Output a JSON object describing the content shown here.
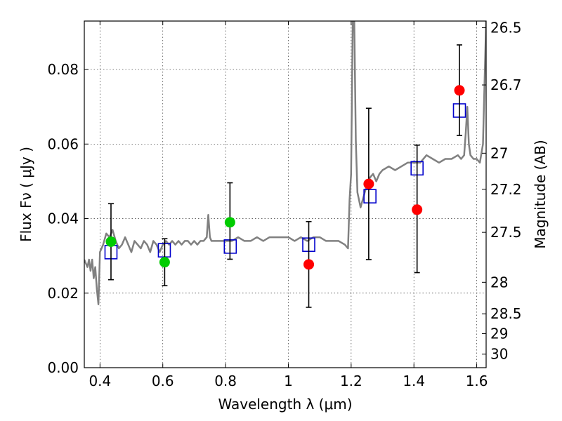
{
  "chart_data": {
    "type": "scatter",
    "xlabel": "Wavelength  λ (μm)",
    "ylabel": "Flux  Fν  ( μJy )",
    "ylabel_right": "Magnitude (AB)",
    "xlim": [
      0.35,
      1.63
    ],
    "ylim": [
      0.0,
      0.093
    ],
    "grid": true,
    "x_ticks": [
      0.4,
      0.6,
      0.8,
      1.0,
      1.2,
      1.4,
      1.6
    ],
    "x_tick_labels": [
      "0.4",
      "0.6",
      "0.8",
      "1",
      "1.2",
      "1.4",
      "1.6"
    ],
    "y_ticks": [
      0.0,
      0.02,
      0.04,
      0.06,
      0.08
    ],
    "y_tick_labels": [
      "0.00",
      "0.02",
      "0.04",
      "0.06",
      "0.08"
    ],
    "mag_ticks": [
      26.5,
      26.7,
      27,
      27.2,
      27.5,
      28,
      28.5,
      29,
      30
    ],
    "mag_tick_labels": [
      "26.5",
      "26.7",
      "27",
      "27.2",
      "27.5",
      "28",
      "28.5",
      "29",
      "30"
    ],
    "series": [
      {
        "kind": "model_spectrum",
        "color": "#808080",
        "x": [
          0.35,
          0.355,
          0.36,
          0.365,
          0.37,
          0.375,
          0.38,
          0.385,
          0.39,
          0.395,
          0.4,
          0.41,
          0.42,
          0.43,
          0.44,
          0.45,
          0.46,
          0.47,
          0.48,
          0.49,
          0.5,
          0.51,
          0.52,
          0.53,
          0.54,
          0.55,
          0.56,
          0.57,
          0.58,
          0.59,
          0.6,
          0.61,
          0.62,
          0.63,
          0.64,
          0.65,
          0.66,
          0.67,
          0.68,
          0.69,
          0.7,
          0.71,
          0.72,
          0.73,
          0.74,
          0.745,
          0.75,
          0.755,
          0.76,
          0.77,
          0.78,
          0.79,
          0.8,
          0.82,
          0.84,
          0.86,
          0.88,
          0.9,
          0.92,
          0.94,
          0.96,
          0.98,
          1.0,
          1.02,
          1.04,
          1.06,
          1.08,
          1.1,
          1.12,
          1.14,
          1.16,
          1.18,
          1.19,
          1.195,
          1.2,
          1.205,
          1.21,
          1.215,
          1.22,
          1.23,
          1.24,
          1.25,
          1.26,
          1.27,
          1.28,
          1.29,
          1.3,
          1.32,
          1.34,
          1.36,
          1.38,
          1.4,
          1.42,
          1.44,
          1.46,
          1.48,
          1.5,
          1.52,
          1.54,
          1.55,
          1.56,
          1.565,
          1.57,
          1.575,
          1.58,
          1.59,
          1.6,
          1.61,
          1.62,
          1.63
        ],
        "y": [
          0.029,
          0.028,
          0.027,
          0.029,
          0.026,
          0.029,
          0.024,
          0.027,
          0.021,
          0.017,
          0.031,
          0.033,
          0.036,
          0.035,
          0.037,
          0.034,
          0.032,
          0.033,
          0.035,
          0.033,
          0.031,
          0.034,
          0.033,
          0.032,
          0.034,
          0.033,
          0.031,
          0.034,
          0.033,
          0.031,
          0.033,
          0.034,
          0.033,
          0.034,
          0.033,
          0.034,
          0.033,
          0.034,
          0.034,
          0.033,
          0.034,
          0.033,
          0.034,
          0.034,
          0.035,
          0.041,
          0.035,
          0.034,
          0.034,
          0.034,
          0.034,
          0.034,
          0.034,
          0.034,
          0.035,
          0.034,
          0.034,
          0.035,
          0.034,
          0.035,
          0.035,
          0.035,
          0.035,
          0.034,
          0.035,
          0.034,
          0.035,
          0.035,
          0.034,
          0.034,
          0.034,
          0.033,
          0.032,
          0.045,
          0.052,
          0.093,
          0.093,
          0.061,
          0.047,
          0.043,
          0.046,
          0.049,
          0.051,
          0.052,
          0.05,
          0.052,
          0.053,
          0.054,
          0.053,
          0.054,
          0.055,
          0.055,
          0.055,
          0.057,
          0.056,
          0.055,
          0.056,
          0.056,
          0.057,
          0.056,
          0.057,
          0.063,
          0.07,
          0.06,
          0.057,
          0.056,
          0.056,
          0.055,
          0.06,
          0.093
        ]
      },
      {
        "kind": "model_photometry",
        "marker": "open-square",
        "color": "#0000cc",
        "x": [
          0.435,
          0.605,
          0.815,
          1.065,
          1.26,
          1.41,
          1.545
        ],
        "y": [
          0.031,
          0.0315,
          0.0325,
          0.033,
          0.046,
          0.0535,
          0.069
        ]
      },
      {
        "kind": "observed_hst",
        "marker": "circle",
        "color": "#00cc00",
        "x": [
          0.435,
          0.606,
          0.814
        ],
        "y": [
          0.0338,
          0.0283,
          0.039
        ],
        "yerr_low": [
          0.0102,
          0.0063,
          0.0099
        ],
        "yerr_high": [
          0.0102,
          0.0063,
          0.0106
        ]
      },
      {
        "kind": "observed_ir",
        "marker": "circle",
        "color": "#ff0000",
        "x": [
          1.065,
          1.256,
          1.41,
          1.545
        ],
        "y": [
          0.0277,
          0.0493,
          0.0424,
          0.0744
        ],
        "yerr_low": [
          0.0115,
          0.0203,
          0.0169,
          0.0121
        ],
        "yerr_high": [
          0.0115,
          0.0203,
          0.0173,
          0.0122
        ]
      }
    ]
  }
}
